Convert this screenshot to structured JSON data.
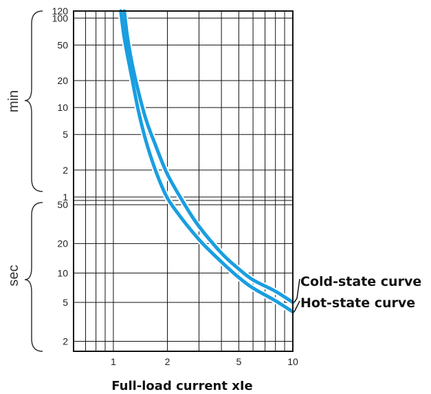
{
  "chart_data": {
    "type": "line",
    "xlabel": "Full-load current  xIe",
    "x_scale": "log",
    "xlim": [
      0.6,
      10
    ],
    "x_ticks": [
      1,
      2,
      5,
      10
    ],
    "y_scale": "log",
    "y_ticks_min": [
      120,
      100,
      50,
      20,
      10,
      5,
      2,
      1
    ],
    "y_ticks_sec": [
      50,
      20,
      10,
      5,
      2
    ],
    "y_unit_upper": "min",
    "y_unit_lower": "sec",
    "grid": true,
    "series_color": "#1a9ee0",
    "series": [
      {
        "name": "Cold-state curve",
        "points": [
          {
            "x": 1.15,
            "y": 120,
            "unit": "min"
          },
          {
            "x": 1.2,
            "y": 60,
            "unit": "min"
          },
          {
            "x": 1.3,
            "y": 25,
            "unit": "min"
          },
          {
            "x": 1.5,
            "y": 8,
            "unit": "min"
          },
          {
            "x": 1.7,
            "y": 4,
            "unit": "min"
          },
          {
            "x": 2.0,
            "y": 1.8,
            "unit": "min"
          },
          {
            "x": 2.5,
            "y": 50,
            "unit": "sec"
          },
          {
            "x": 3.0,
            "y": 30,
            "unit": "sec"
          },
          {
            "x": 4.0,
            "y": 16,
            "unit": "sec"
          },
          {
            "x": 5.0,
            "y": 11,
            "unit": "sec"
          },
          {
            "x": 6.0,
            "y": 8.5,
            "unit": "sec"
          },
          {
            "x": 8.0,
            "y": 6.5,
            "unit": "sec"
          },
          {
            "x": 10.0,
            "y": 5.0,
            "unit": "sec"
          }
        ]
      },
      {
        "name": "Hot-state curve",
        "points": [
          {
            "x": 1.1,
            "y": 120,
            "unit": "min"
          },
          {
            "x": 1.15,
            "y": 60,
            "unit": "min"
          },
          {
            "x": 1.25,
            "y": 25,
            "unit": "min"
          },
          {
            "x": 1.4,
            "y": 8,
            "unit": "min"
          },
          {
            "x": 1.6,
            "y": 3,
            "unit": "min"
          },
          {
            "x": 1.9,
            "y": 1.2,
            "unit": "min"
          },
          {
            "x": 2.2,
            "y": 45,
            "unit": "sec"
          },
          {
            "x": 3.0,
            "y": 22,
            "unit": "sec"
          },
          {
            "x": 4.0,
            "y": 13,
            "unit": "sec"
          },
          {
            "x": 5.0,
            "y": 9,
            "unit": "sec"
          },
          {
            "x": 6.0,
            "y": 7,
            "unit": "sec"
          },
          {
            "x": 8.0,
            "y": 5.2,
            "unit": "sec"
          },
          {
            "x": 10.0,
            "y": 4.0,
            "unit": "sec"
          }
        ]
      }
    ]
  }
}
